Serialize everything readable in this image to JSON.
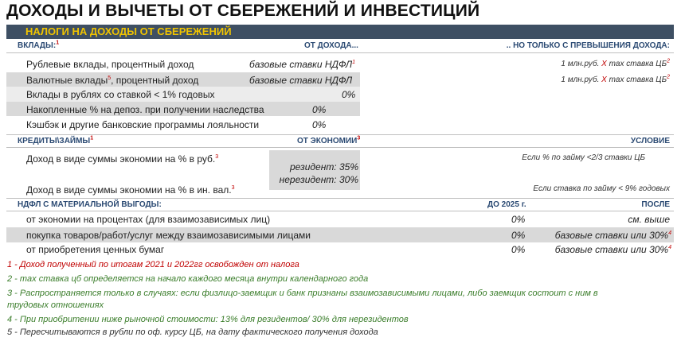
{
  "title": "ДОХОДЫ И ВЫЧЕТЫ ОТ СБЕРЕЖЕНИЙ И ИНВЕСТИЦИЙ",
  "banner": "НАЛОГИ НА ДОХОДЫ ОТ СБЕРЕЖЕНИЙ",
  "deposits": {
    "header": "ВКЛАДЫ:",
    "header_sup": "1",
    "col_from_income": "ОТ ДОХОДА...",
    "col_excess": ".. НО ТОЛЬКО С ПРЕВЫШЕНИЯ ДОХОДА:",
    "rows": [
      {
        "label": "Рублевые вклады, процентный доход",
        "label_sup": "",
        "value": "базовые ставки НДФЛ",
        "value_sup": "1",
        "excess_a": "1 млн.руб.",
        "excess_x": "X",
        "excess_b": "max ставка ЦБ",
        "excess_sup": "2"
      },
      {
        "label": "Валютные вклады",
        "label_sup": "5",
        "label_tail": ", процентный доход",
        "value": "базовые ставки НДФЛ",
        "value_sup": "",
        "excess_a": "1 млн.руб.",
        "excess_x": "X",
        "excess_b": "max ставка ЦБ",
        "excess_sup": "2"
      },
      {
        "label": "Вклады в рублях со ставкой < 1% годовых",
        "value": "0%"
      },
      {
        "label": "Накопленные % на депоз. при получении наследства",
        "value": "0%"
      },
      {
        "label": "Кэшбэк и другие банковские программы лояльности",
        "value": "0%"
      }
    ]
  },
  "loans": {
    "header": "КРЕДИТЫ\\ЗАЙМЫ",
    "header_sup": "1",
    "col_savings": "ОТ ЭКОНОМИИ",
    "col_savings_sup": "3",
    "col_condition": "УСЛОВИЕ",
    "rows": [
      {
        "label": "Доход в виде суммы экономии на % в руб.",
        "label_sup": "3",
        "condition": "Если % по займу <2/3 ставки ЦБ"
      },
      {
        "label": "Доход в виде суммы экономии на % в ин. вал.",
        "label_sup": "3",
        "condition": "Если ставка по займу < 9% годовых"
      }
    ],
    "resident": "резидент: 35%",
    "nonresident": "нерезидент: 30%"
  },
  "material": {
    "header": "НДФЛ С МАТЕРИАЛЬНОЙ ВЫГОДЫ:",
    "col_before": "ДО 2025 г.",
    "col_after": "ПОСЛЕ",
    "rows": [
      {
        "label": "от экономии на процентах (для взаимозависимых лиц)",
        "before": "0%",
        "after": "см. выше",
        "after_sup": ""
      },
      {
        "label": "покупка товаров/работ/услуг между взаимозависимыми лицами",
        "before": "0%",
        "after": "базовые ставки или 30%",
        "after_sup": "4"
      },
      {
        "label": "от приобретения ценных бумаг",
        "before": "0%",
        "after": "базовые ставки или 30%",
        "after_sup": "4"
      }
    ]
  },
  "footnotes": [
    "1 - Доход полученный по итогам 2021 и 2022гг освобожден от налога",
    "2 - max ставка цб определяется на начало каждого месяца внутри календарного года",
    "3 - Распространяется только в случаях: если физлицо-заемщик и банк признаны взаимозависимыми лицами, либо заемщик состоит с ним в",
    "трудовых отношениях",
    "4 - При приобритении ниже рыночной стоимости: 13% для резидентов/ 30% для нерезидентов",
    "5 - Пересчитываются в рубли по оф. курсу ЦБ, на дату фактического получения дохода"
  ],
  "colors": {
    "banner_bg": "#3e4f63",
    "banner_text": "#f0c400",
    "accent_red": "#c00000",
    "accent_green": "#3a7d2a",
    "header_blue": "#2b4a73"
  }
}
